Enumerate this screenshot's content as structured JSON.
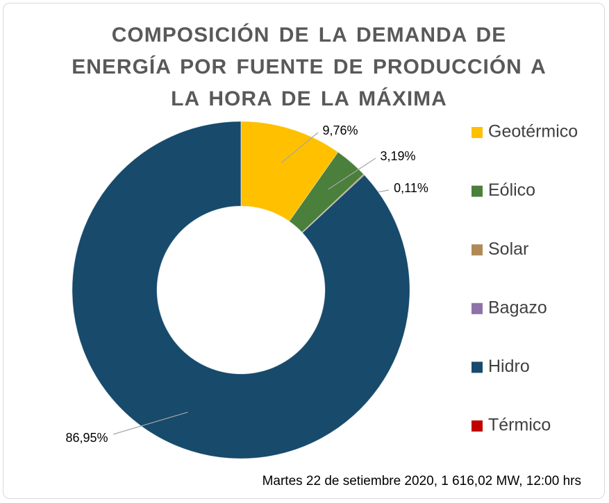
{
  "chart_data": {
    "type": "donut",
    "title": "COMPOSICIÓN  DE  LA  DEMANDA DE ENERGÍA POR FUENTE DE PRODUCCIÓN A LA  HORA  DE  LA  MÁXIMA",
    "subtitle": "Martes 22 de setiembre 2020, 1 616,02 MW, 12:00 hrs",
    "categories": [
      "Geotérmico",
      "Eólico",
      "Solar",
      "Bagazo",
      "Hidro",
      "Térmico"
    ],
    "values": [
      9.76,
      3.19,
      0.11,
      0,
      86.95,
      0
    ],
    "value_labels": [
      "9,76%",
      "3,19%",
      "0,11%",
      null,
      "86,95%",
      null
    ],
    "colors": [
      "#ffc000",
      "#4a7f3c",
      "#b08a56",
      "#8e72a8",
      "#174a6b",
      "#c00000"
    ],
    "legend": "right"
  }
}
